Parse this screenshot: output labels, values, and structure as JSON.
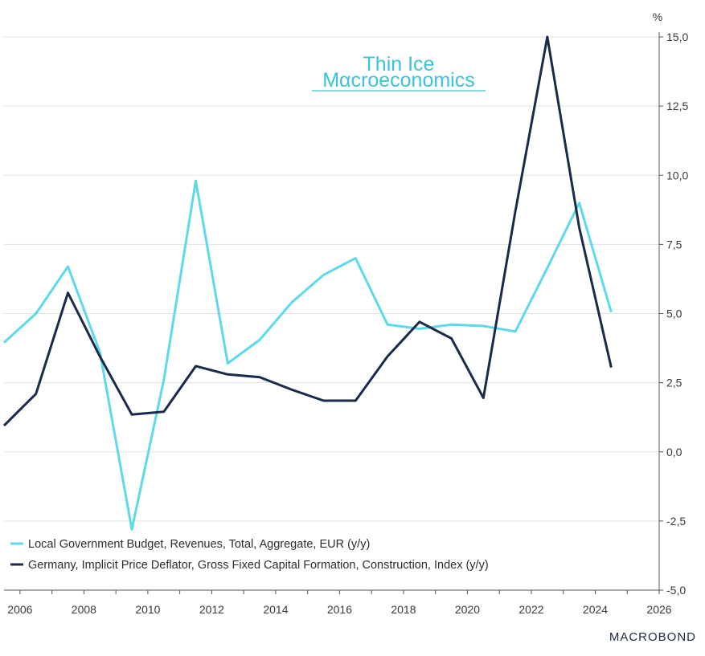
{
  "watermark": {
    "line1": "Thin Ice",
    "line2": "Mαcroeconomics",
    "color": "#3bc3d6"
  },
  "source_logo": "MACROBOND",
  "colors": {
    "series1": "#5cd9ea",
    "series2": "#1a2b4a",
    "grid": "#e3e3e3",
    "axis": "#555555"
  },
  "chart_data": {
    "type": "line",
    "title": "",
    "xlabel": "",
    "ylabel": "%",
    "unit": "%",
    "xlim": [
      2005.5,
      2026
    ],
    "ylim": [
      -5,
      15
    ],
    "x_ticks": [
      "2006",
      "2008",
      "2010",
      "2012",
      "2014",
      "2016",
      "2018",
      "2020",
      "2022",
      "2024",
      "2026"
    ],
    "y_ticks": [
      "15,0",
      "12,5",
      "10,0",
      "7,5",
      "5,0",
      "2,5",
      "0,0",
      "-2,5",
      "-5,0"
    ],
    "grid": "horizontal",
    "legend_position": "bottom-left",
    "series": [
      {
        "name": "Local Government Budget, Revenues, Total, Aggregate, EUR (y/y)",
        "color": "#5cd9ea",
        "x": [
          2005.5,
          2006.5,
          2007.5,
          2008.5,
          2009.5,
          2010.5,
          2011.5,
          2012.5,
          2013.5,
          2014.5,
          2015.5,
          2016.5,
          2017.5,
          2018.5,
          2019.5,
          2020.5,
          2021.5,
          2022.5,
          2023.5,
          2024.5
        ],
        "values": [
          3.95,
          5.0,
          6.7,
          3.6,
          -2.8,
          2.6,
          9.8,
          3.2,
          4.05,
          5.4,
          6.4,
          7.0,
          4.6,
          4.45,
          4.6,
          4.55,
          4.35,
          6.65,
          9.0,
          5.05
        ]
      },
      {
        "name": "Germany, Implicit Price Deflator, Gross Fixed Capital Formation, Construction, Index (y/y)",
        "color": "#1a2b4a",
        "x": [
          2005.5,
          2006.5,
          2007.5,
          2008.5,
          2009.5,
          2010.5,
          2011.5,
          2012.5,
          2013.5,
          2014.5,
          2015.5,
          2016.5,
          2017.5,
          2018.5,
          2019.5,
          2020.5,
          2021.5,
          2022.5,
          2023.5,
          2024.5
        ],
        "values": [
          0.95,
          2.1,
          5.75,
          3.45,
          1.35,
          1.45,
          3.1,
          2.8,
          2.7,
          2.25,
          1.85,
          1.85,
          3.45,
          4.7,
          4.1,
          1.95,
          8.7,
          15.0,
          8.1,
          3.05
        ]
      }
    ]
  }
}
